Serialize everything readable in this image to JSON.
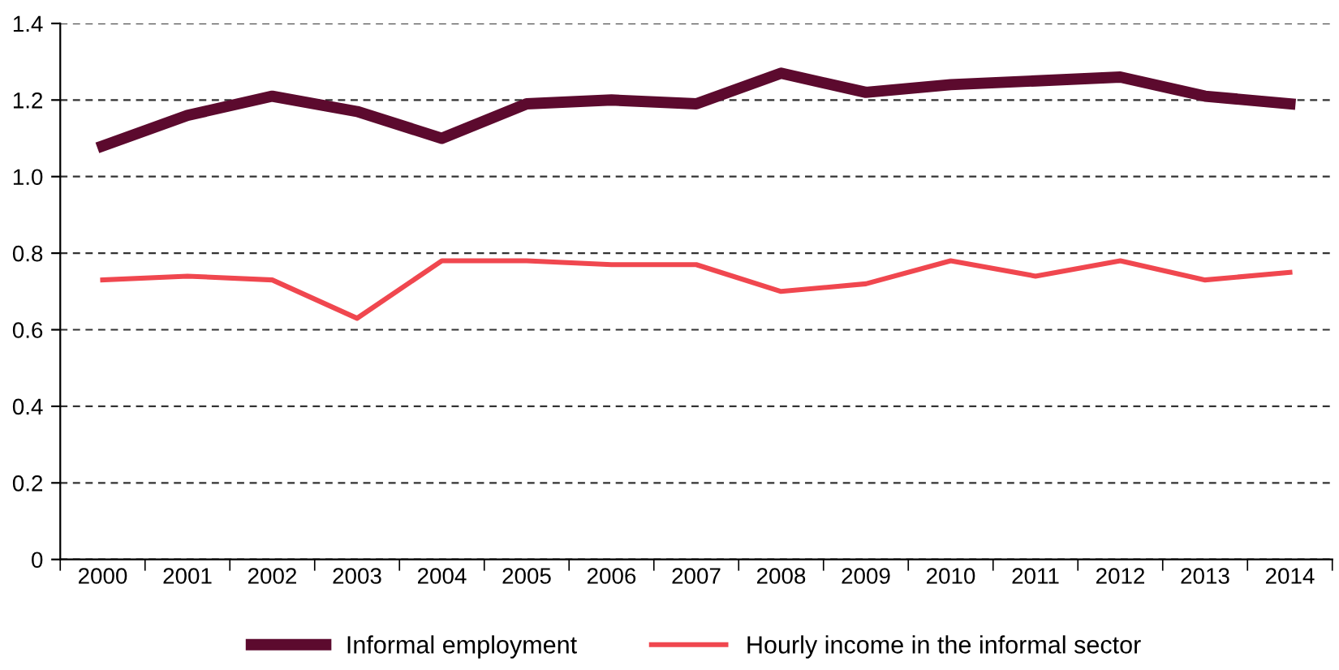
{
  "chart_data": {
    "type": "line",
    "categories": [
      "2000",
      "2001",
      "2002",
      "2003",
      "2004",
      "2005",
      "2006",
      "2007",
      "2008",
      "2009",
      "2010",
      "2011",
      "2012",
      "2013",
      "2014"
    ],
    "series": [
      {
        "name": "Informal employment",
        "color": "#5c0a2e",
        "values": [
          1.08,
          1.16,
          1.21,
          1.17,
          1.1,
          1.19,
          1.2,
          1.19,
          1.27,
          1.22,
          1.24,
          1.25,
          1.26,
          1.21,
          1.19
        ]
      },
      {
        "name": "Hourly income in the informal sector",
        "color": "#f0474f",
        "values": [
          0.73,
          0.74,
          0.73,
          0.63,
          0.78,
          0.78,
          0.77,
          0.77,
          0.7,
          0.72,
          0.78,
          0.74,
          0.78,
          0.73,
          0.75
        ]
      }
    ],
    "ylim": [
      0,
      1.4
    ],
    "yticks": [
      {
        "value": 0,
        "label": "0"
      },
      {
        "value": 0.2,
        "label": "0.2"
      },
      {
        "value": 0.4,
        "label": "0.4"
      },
      {
        "value": 0.6,
        "label": "0.6"
      },
      {
        "value": 0.8,
        "label": "0.8"
      },
      {
        "value": 1.0,
        "label": "1.0"
      },
      {
        "value": 1.2,
        "label": "1.2"
      },
      {
        "value": 1.4,
        "label": "1.4"
      }
    ],
    "grid": "y",
    "line_style": "solid",
    "legend": "bottom"
  }
}
